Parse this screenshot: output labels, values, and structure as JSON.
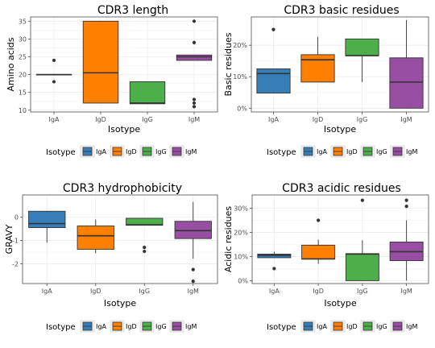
{
  "colors": {
    "IgA": "#377eb8",
    "IgD": "#ff7f00",
    "IgG": "#4daf4a",
    "IgM": "#984ea3",
    "panel_border": "#4d4d4d",
    "grid": "#ececec"
  },
  "chart_data": [
    {
      "type": "box",
      "title": "CDR3 length",
      "xlabel": "Isotype",
      "ylabel": "Amino acids",
      "categories": [
        "IgA",
        "IgD",
        "IgG",
        "IgM"
      ],
      "ylim": [
        9.5,
        36.2
      ],
      "yticks": [
        10,
        15,
        20,
        25,
        30,
        35
      ],
      "ytick_labels": [
        "10",
        "15",
        "20",
        "25",
        "30",
        "35"
      ],
      "grid": true,
      "legend_position": "bottom",
      "legend_title": "Isotype",
      "boxes": [
        {
          "q1": 20,
          "median": 20,
          "q3": 20,
          "whisker_low": 20,
          "whisker_high": 20,
          "outliers": [
            24,
            18
          ]
        },
        {
          "q1": 12,
          "median": 20.5,
          "q3": 35,
          "whisker_low": 12,
          "whisker_high": 35,
          "outliers": []
        },
        {
          "q1": 11.8,
          "median": 12,
          "q3": 18,
          "whisker_low": 11.8,
          "whisker_high": 18,
          "outliers": []
        },
        {
          "q1": 24,
          "median": 25,
          "q3": 25.5,
          "whisker_low": 24,
          "whisker_high": 25.5,
          "outliers": [
            35,
            29,
            29,
            13,
            12,
            11
          ]
        }
      ]
    },
    {
      "type": "box",
      "title": "CDR3 basic residues",
      "xlabel": "Isotype",
      "ylabel": "Basic residues",
      "categories": [
        "IgA",
        "IgD",
        "IgG",
        "IgM"
      ],
      "ylim": [
        -0.012,
        0.29
      ],
      "yticks": [
        0,
        0.1,
        0.2
      ],
      "ytick_labels": [
        "0%",
        "10%",
        "20%"
      ],
      "grid": true,
      "legend_position": "bottom",
      "legend_title": "Isotype",
      "boxes": [
        {
          "q1": 0.048,
          "median": 0.11,
          "q3": 0.125,
          "whisker_low": 0.048,
          "whisker_high": 0.125,
          "outliers": [
            0.25
          ]
        },
        {
          "q1": 0.083,
          "median": 0.154,
          "q3": 0.17,
          "whisker_low": 0.083,
          "whisker_high": 0.227,
          "outliers": []
        },
        {
          "q1": 0.167,
          "median": 0.167,
          "q3": 0.22,
          "whisker_low": 0.083,
          "whisker_high": 0.22,
          "outliers": []
        },
        {
          "q1": 0.0,
          "median": 0.083,
          "q3": 0.16,
          "whisker_low": 0.0,
          "whisker_high": 0.28,
          "outliers": []
        }
      ]
    },
    {
      "type": "box",
      "title": "CDR3 hydrophobicity",
      "xlabel": "Isotype",
      "ylabel": "GRAVY",
      "categories": [
        "IgA",
        "IgD",
        "IgG",
        "IgM"
      ],
      "ylim": [
        -2.85,
        0.95
      ],
      "yticks": [
        -2,
        -1,
        0
      ],
      "ytick_labels": [
        "-2",
        "-1",
        "0"
      ],
      "grid": true,
      "legend_position": "bottom",
      "legend_title": "Isotype",
      "boxes": [
        {
          "q1": -0.45,
          "median": -0.28,
          "q3": 0.25,
          "whisker_low": -1.1,
          "whisker_high": 0.25,
          "outliers": []
        },
        {
          "q1": -1.38,
          "median": -0.8,
          "q3": -0.38,
          "whisker_low": -1.55,
          "whisker_high": -0.1,
          "outliers": []
        },
        {
          "q1": -0.35,
          "median": -0.33,
          "q3": -0.05,
          "whisker_low": -0.35,
          "whisker_high": -0.05,
          "outliers": [
            -1.3,
            -1.47
          ]
        },
        {
          "q1": -0.92,
          "median": -0.58,
          "q3": -0.18,
          "whisker_low": -1.78,
          "whisker_high": 0.65,
          "outliers": [
            -2.25,
            -2.75
          ]
        }
      ]
    },
    {
      "type": "box",
      "title": "CDR3 acidic residues",
      "xlabel": "Isotype",
      "ylabel": "Acidic residues",
      "categories": [
        "IgA",
        "IgD",
        "IgG",
        "IgM"
      ],
      "ylim": [
        -0.012,
        0.355
      ],
      "yticks": [
        0,
        0.1,
        0.2,
        0.3
      ],
      "ytick_labels": [
        "0%",
        "10%",
        "20%",
        "30%"
      ],
      "grid": true,
      "legend_position": "bottom",
      "legend_title": "Isotype",
      "boxes": [
        {
          "q1": 0.095,
          "median": 0.105,
          "q3": 0.11,
          "whisker_low": 0.095,
          "whisker_high": 0.12,
          "outliers": [
            0.05
          ]
        },
        {
          "q1": 0.09,
          "median": 0.09,
          "q3": 0.147,
          "whisker_low": 0.07,
          "whisker_high": 0.17,
          "outliers": [
            0.25
          ]
        },
        {
          "q1": 0.0,
          "median": 0.11,
          "q3": 0.112,
          "whisker_low": 0.0,
          "whisker_high": 0.167,
          "outliers": [
            0.333
          ]
        },
        {
          "q1": 0.083,
          "median": 0.12,
          "q3": 0.16,
          "whisker_low": 0.0,
          "whisker_high": 0.25,
          "outliers": [
            0.333,
            0.308
          ]
        }
      ]
    }
  ]
}
